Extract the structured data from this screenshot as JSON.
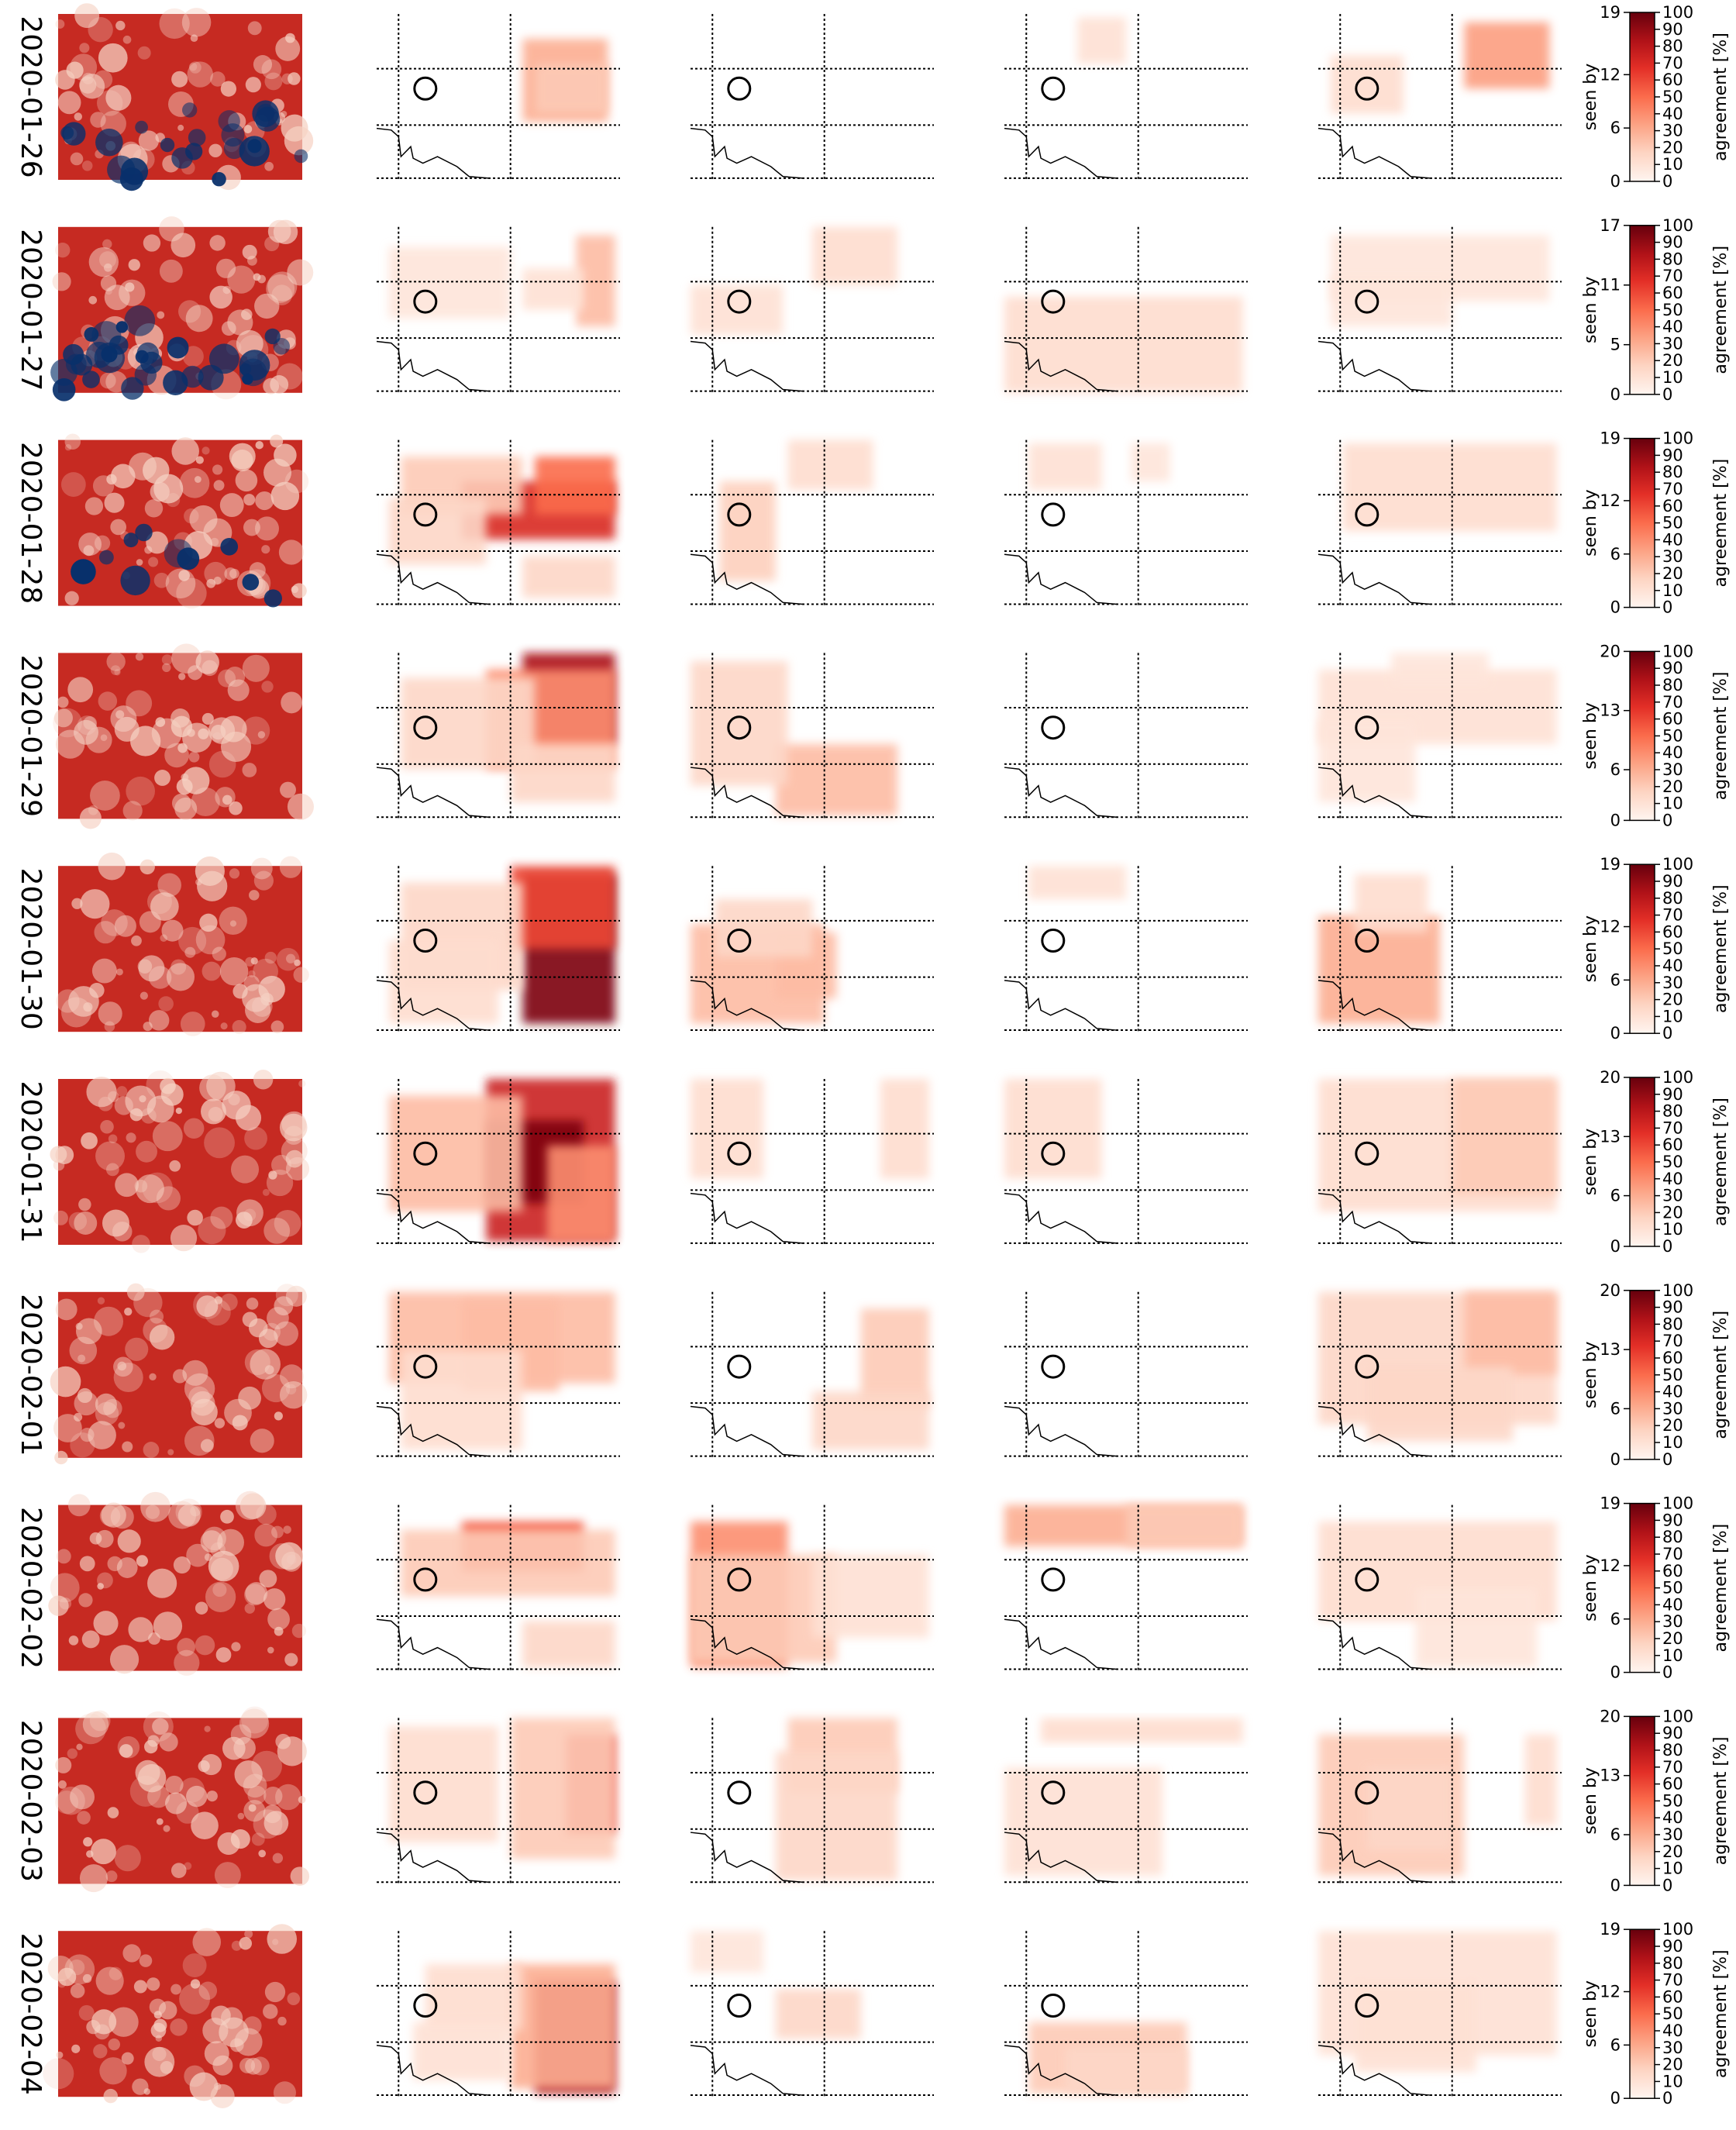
{
  "chart_data": {
    "type": "heatmap",
    "description_columns": 4,
    "colorbar": {
      "left_label": "seen by",
      "right_label": "agreement [%]",
      "right_ticks": [
        "0",
        "10",
        "20",
        "30",
        "40",
        "50",
        "60",
        "70",
        "80",
        "90",
        "100"
      ],
      "colormap": [
        "#fff5f0",
        "#fdd4c2",
        "#fca486",
        "#fb6c4c",
        "#e32f27",
        "#b11218",
        "#67000d"
      ]
    },
    "colors": {
      "satellite_cold": "#08306b",
      "satellite_mid": "#f7f7f7",
      "satellite_warm": "#c62a22"
    },
    "rows": [
      {
        "date": "2020-01-26",
        "seen_by_max": 19,
        "seen_by_ticks": [
          "0",
          "6",
          "12",
          "19"
        ],
        "panels": [
          [
            [
              0.6,
              0.15,
              0.95,
              0.65,
              0.3
            ],
            [
              0.65,
              0.3,
              0.95,
              0.6,
              0.2
            ]
          ],
          [],
          [
            [
              0.3,
              0.02,
              0.5,
              0.3,
              0.1
            ]
          ],
          [
            [
              0.6,
              0.05,
              0.95,
              0.45,
              0.35
            ],
            [
              0.05,
              0.25,
              0.35,
              0.6,
              0.12
            ]
          ]
        ]
      },
      {
        "date": "2020-01-27",
        "seen_by_max": 17,
        "seen_by_ticks": [
          "0",
          "5",
          "11",
          "17"
        ],
        "panels": [
          [
            [
              0.82,
              0.05,
              0.98,
              0.6,
              0.25
            ],
            [
              0.05,
              0.12,
              0.55,
              0.55,
              0.08
            ],
            [
              0.6,
              0.25,
              0.85,
              0.5,
              0.1
            ]
          ],
          [
            [
              0.5,
              0.0,
              0.85,
              0.35,
              0.12
            ],
            [
              0.0,
              0.35,
              0.38,
              0.65,
              0.1
            ]
          ],
          [
            [
              0.0,
              0.42,
              0.98,
              1.0,
              0.12
            ]
          ],
          [
            [
              0.05,
              0.05,
              0.95,
              0.45,
              0.08
            ],
            [
              0.05,
              0.3,
              0.55,
              0.6,
              0.08
            ]
          ]
        ]
      },
      {
        "date": "2020-01-28",
        "seen_by_max": 19,
        "seen_by_ticks": [
          "0",
          "6",
          "12",
          "19"
        ],
        "panels": [
          [
            [
              0.35,
              0.25,
              0.98,
              0.6,
              0.7
            ],
            [
              0.65,
              0.1,
              0.98,
              0.45,
              0.5
            ],
            [
              0.1,
              0.1,
              0.6,
              0.45,
              0.2
            ],
            [
              0.05,
              0.35,
              0.45,
              0.75,
              0.15
            ],
            [
              0.6,
              0.7,
              0.98,
              0.95,
              0.15
            ]
          ],
          [
            [
              0.12,
              0.25,
              0.35,
              0.85,
              0.18
            ],
            [
              0.4,
              0.0,
              0.75,
              0.3,
              0.12
            ]
          ],
          [
            [
              0.1,
              0.02,
              0.4,
              0.3,
              0.1
            ],
            [
              0.52,
              0.02,
              0.68,
              0.25,
              0.08
            ]
          ],
          [
            [
              0.1,
              0.02,
              0.98,
              0.55,
              0.12
            ]
          ]
        ]
      },
      {
        "date": "2020-01-29",
        "seen_by_max": 20,
        "seen_by_ticks": [
          "0",
          "6",
          "13",
          "20"
        ],
        "panels": [
          [
            [
              0.6,
              0.0,
              0.98,
              0.55,
              0.85
            ],
            [
              0.45,
              0.1,
              0.98,
              0.7,
              0.4
            ],
            [
              0.1,
              0.15,
              0.65,
              0.7,
              0.15
            ],
            [
              0.55,
              0.55,
              0.98,
              0.9,
              0.15
            ]
          ],
          [
            [
              0.35,
              0.55,
              0.85,
              0.98,
              0.25
            ],
            [
              0.0,
              0.05,
              0.4,
              0.8,
              0.15
            ]
          ],
          [],
          [
            [
              0.0,
              0.1,
              0.98,
              0.55,
              0.1
            ],
            [
              0.0,
              0.4,
              0.4,
              0.9,
              0.08
            ],
            [
              0.3,
              0.0,
              0.7,
              0.2,
              0.08
            ]
          ]
        ]
      },
      {
        "date": "2020-01-30",
        "seen_by_max": 19,
        "seen_by_ticks": [
          "0",
          "6",
          "12",
          "19"
        ],
        "panels": [
          [
            [
              0.6,
              0.05,
              0.98,
              0.95,
              0.95
            ],
            [
              0.55,
              0.0,
              0.98,
              0.5,
              0.6
            ],
            [
              0.1,
              0.1,
              0.6,
              0.75,
              0.15
            ],
            [
              0.05,
              0.45,
              0.5,
              0.95,
              0.12
            ]
          ],
          [
            [
              0.0,
              0.35,
              0.55,
              0.95,
              0.25
            ],
            [
              0.35,
              0.4,
              0.6,
              0.8,
              0.25
            ],
            [
              0.1,
              0.2,
              0.5,
              0.55,
              0.15
            ]
          ],
          [
            [
              0.1,
              0.0,
              0.5,
              0.2,
              0.1
            ]
          ],
          [
            [
              0.0,
              0.3,
              0.5,
              0.95,
              0.3
            ],
            [
              0.15,
              0.05,
              0.45,
              0.4,
              0.12
            ]
          ]
        ]
      },
      {
        "date": "2020-01-31",
        "seen_by_max": 20,
        "seen_by_ticks": [
          "0",
          "6",
          "13",
          "20"
        ],
        "panels": [
          [
            [
              0.45,
              0.0,
              0.98,
              0.98,
              0.75
            ],
            [
              0.45,
              0.25,
              0.85,
              0.75,
              0.95
            ],
            [
              0.05,
              0.1,
              0.6,
              0.8,
              0.25
            ],
            [
              0.7,
              0.4,
              0.98,
              0.98,
              0.4
            ]
          ],
          [
            [
              0.0,
              0.0,
              0.3,
              0.6,
              0.12
            ],
            [
              0.78,
              0.0,
              0.98,
              0.6,
              0.12
            ]
          ],
          [
            [
              0.0,
              0.0,
              0.4,
              0.6,
              0.12
            ]
          ],
          [
            [
              0.0,
              0.0,
              0.98,
              0.8,
              0.12
            ],
            [
              0.55,
              0.0,
              0.98,
              0.7,
              0.2
            ]
          ]
        ]
      },
      {
        "date": "2020-02-01",
        "seen_by_max": 20,
        "seen_by_ticks": [
          "0",
          "6",
          "13",
          "20"
        ],
        "panels": [
          [
            [
              0.05,
              0.0,
              0.98,
              0.55,
              0.25
            ],
            [
              0.35,
              0.05,
              0.75,
              0.6,
              0.25
            ],
            [
              0.1,
              0.35,
              0.6,
              0.95,
              0.12
            ]
          ],
          [
            [
              0.7,
              0.1,
              0.98,
              0.7,
              0.2
            ],
            [
              0.5,
              0.6,
              0.98,
              0.95,
              0.15
            ]
          ],
          [],
          [
            [
              0.0,
              0.0,
              0.98,
              0.8,
              0.15
            ],
            [
              0.6,
              0.0,
              0.98,
              0.5,
              0.25
            ],
            [
              0.2,
              0.45,
              0.8,
              0.9,
              0.15
            ]
          ]
        ]
      },
      {
        "date": "2020-02-02",
        "seen_by_max": 19,
        "seen_by_ticks": [
          "0",
          "6",
          "12",
          "19"
        ],
        "panels": [
          [
            [
              0.35,
              0.1,
              0.85,
              0.4,
              0.55
            ],
            [
              0.1,
              0.15,
              0.98,
              0.55,
              0.2
            ],
            [
              0.6,
              0.7,
              0.98,
              0.98,
              0.15
            ]
          ],
          [
            [
              0.0,
              0.1,
              0.4,
              0.98,
              0.4
            ],
            [
              0.0,
              0.3,
              0.6,
              0.95,
              0.2
            ],
            [
              0.5,
              0.3,
              0.98,
              0.8,
              0.1
            ]
          ],
          [
            [
              0.0,
              0.0,
              0.98,
              0.25,
              0.3
            ],
            [
              0.5,
              0.0,
              0.98,
              0.25,
              0.2
            ]
          ],
          [
            [
              0.0,
              0.1,
              0.98,
              0.7,
              0.12
            ],
            [
              0.4,
              0.5,
              0.9,
              0.98,
              0.08
            ]
          ]
        ]
      },
      {
        "date": "2020-02-03",
        "seen_by_max": 20,
        "seen_by_ticks": [
          "0",
          "6",
          "13",
          "20"
        ],
        "panels": [
          [
            [
              0.78,
              0.1,
              0.98,
              0.7,
              0.65
            ],
            [
              0.55,
              0.0,
              0.98,
              0.85,
              0.2
            ],
            [
              0.05,
              0.05,
              0.5,
              0.75,
              0.12
            ]
          ],
          [
            [
              0.4,
              0.0,
              0.85,
              0.45,
              0.2
            ],
            [
              0.35,
              0.2,
              0.85,
              0.98,
              0.15
            ]
          ],
          [
            [
              0.15,
              0.0,
              0.98,
              0.15,
              0.12
            ],
            [
              0.0,
              0.3,
              0.65,
              0.95,
              0.1
            ]
          ],
          [
            [
              0.0,
              0.1,
              0.6,
              0.95,
              0.2
            ],
            [
              0.2,
              0.3,
              0.55,
              0.8,
              0.15
            ],
            [
              0.85,
              0.1,
              0.98,
              0.65,
              0.12
            ]
          ]
        ]
      },
      {
        "date": "2020-02-04",
        "seen_by_max": 19,
        "seen_by_ticks": [
          "0",
          "6",
          "12",
          "19"
        ],
        "panels": [
          [
            [
              0.65,
              0.3,
              0.98,
              0.98,
              0.85
            ],
            [
              0.55,
              0.2,
              0.98,
              0.95,
              0.3
            ],
            [
              0.2,
              0.2,
              0.6,
              0.6,
              0.12
            ],
            [
              0.15,
              0.55,
              0.55,
              0.9,
              0.1
            ]
          ],
          [
            [
              0.35,
              0.35,
              0.7,
              0.65,
              0.15
            ],
            [
              0.0,
              0.0,
              0.3,
              0.25,
              0.08
            ]
          ],
          [
            [
              0.1,
              0.55,
              0.75,
              0.98,
              0.2
            ],
            [
              0.25,
              0.7,
              0.75,
              0.98,
              0.15
            ]
          ],
          [
            [
              0.0,
              0.0,
              0.98,
              0.75,
              0.1
            ],
            [
              0.15,
              0.3,
              0.65,
              0.85,
              0.1
            ]
          ]
        ]
      }
    ]
  }
}
